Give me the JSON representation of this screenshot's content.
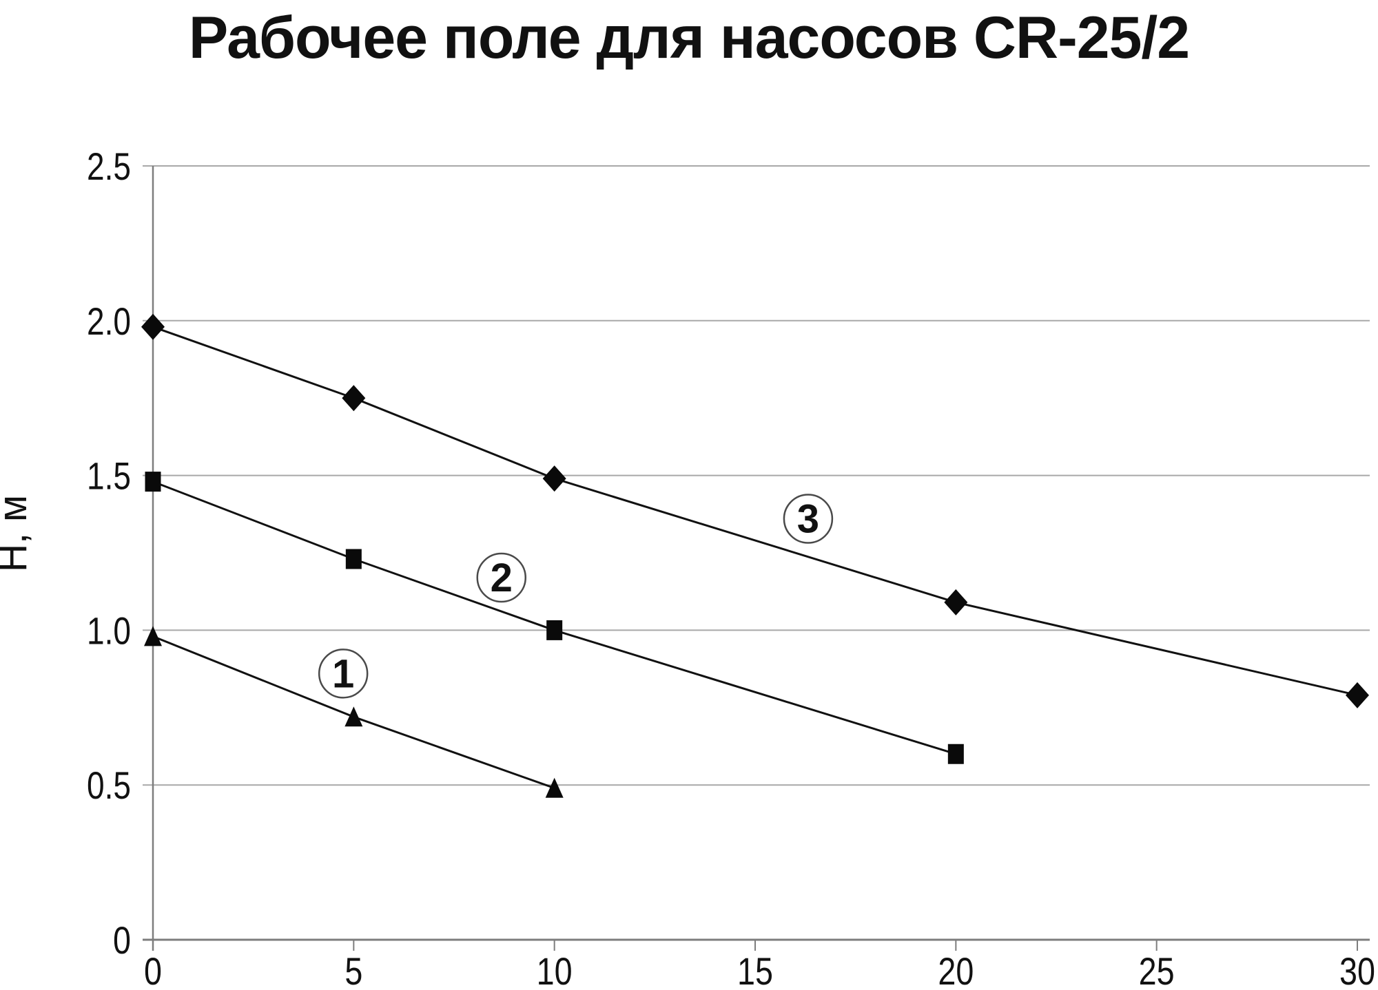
{
  "title": "Рабочее поле для насосов CR-25/2",
  "colors": {
    "background": "#ffffff",
    "text": "#111111",
    "series_line": "#111111",
    "marker_fill": "#0a0a0a",
    "gridline": "#a8a8a8",
    "axis": "#7d7d7d",
    "circle_border": "#4a4a4a",
    "circle_fill": "#ffffff"
  },
  "chart_data": {
    "type": "line",
    "title": "Рабочее поле для насосов CR-25/2",
    "xlabel": "",
    "ylabel": "Н, м",
    "xlim": [
      0,
      30.3
    ],
    "ylim": [
      0,
      2.5
    ],
    "x_ticks": [
      0,
      5,
      10,
      15,
      20,
      25,
      30
    ],
    "y_ticks": [
      "0",
      "0.5",
      "1.0",
      "1.5",
      "2.0",
      "2.5"
    ],
    "grid": "horizontal",
    "legend_position": "none",
    "series": [
      {
        "name": "1",
        "marker": "triangle",
        "x": [
          0,
          5,
          10
        ],
        "values": [
          0.98,
          0.72,
          0.49
        ],
        "label": "1",
        "label_at": [
          4.74,
          0.86
        ]
      },
      {
        "name": "2",
        "marker": "square",
        "x": [
          0,
          5,
          10,
          20
        ],
        "values": [
          1.48,
          1.23,
          1.0,
          0.6
        ],
        "label": "2",
        "label_at": [
          8.68,
          1.17
        ]
      },
      {
        "name": "3",
        "marker": "diamond",
        "x": [
          0,
          5,
          10,
          20,
          30
        ],
        "values": [
          1.98,
          1.75,
          1.49,
          1.09,
          0.79
        ],
        "label": "3",
        "label_at": [
          16.32,
          1.36
        ]
      }
    ]
  }
}
